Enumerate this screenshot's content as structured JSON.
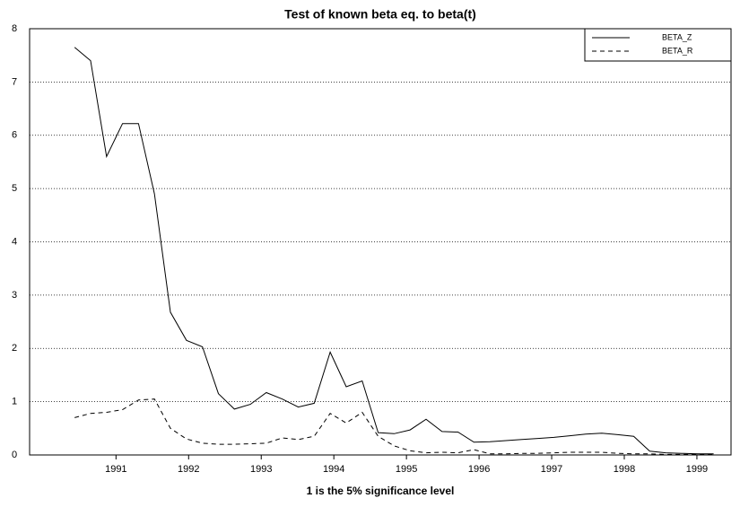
{
  "chart_data": {
    "type": "line",
    "title": "Test of known beta eq. to beta(t)",
    "x_label": "1 is the 5% significance level",
    "x": [
      1990.43,
      1990.65,
      1990.87,
      1991.09,
      1991.31,
      1991.53,
      1991.75,
      1991.97,
      1992.19,
      1992.41,
      1992.63,
      1992.85,
      1993.07,
      1993.29,
      1993.51,
      1993.73,
      1993.95,
      1994.17,
      1994.39,
      1994.61,
      1994.83,
      1995.05,
      1995.27,
      1995.49,
      1995.71,
      1995.93,
      1996.15,
      1996.37,
      1996.59,
      1996.81,
      1997.03,
      1997.25,
      1997.47,
      1997.69,
      1997.91,
      1998.13,
      1998.35,
      1998.57,
      1998.79,
      1999.01,
      1999.23
    ],
    "series": [
      {
        "name": "BETA_Z",
        "color": "#000000",
        "dash": "solid",
        "values": [
          7.65,
          7.4,
          5.6,
          6.22,
          6.22,
          4.9,
          2.68,
          2.15,
          2.03,
          1.15,
          0.86,
          0.95,
          1.17,
          1.05,
          0.9,
          0.97,
          1.93,
          1.28,
          1.39,
          0.42,
          0.4,
          0.47,
          0.67,
          0.44,
          0.43,
          0.24,
          0.25,
          0.27,
          0.29,
          0.31,
          0.33,
          0.36,
          0.39,
          0.41,
          0.38,
          0.35,
          0.07,
          0.04,
          0.03,
          0.02,
          0.02
        ]
      },
      {
        "name": "BETA_R",
        "color": "#000000",
        "dash": "dashed",
        "values": [
          0.7,
          0.78,
          0.8,
          0.85,
          1.03,
          1.05,
          0.5,
          0.3,
          0.22,
          0.2,
          0.2,
          0.21,
          0.22,
          0.32,
          0.29,
          0.35,
          0.78,
          0.6,
          0.8,
          0.35,
          0.17,
          0.08,
          0.04,
          0.05,
          0.04,
          0.1,
          0.02,
          0.02,
          0.03,
          0.03,
          0.04,
          0.05,
          0.05,
          0.05,
          0.03,
          0.02,
          0.02,
          0.01,
          0.01,
          0.01,
          0.01
        ]
      }
    ],
    "xlim": [
      1989.81,
      1999.47
    ],
    "xticks": [
      1991,
      1992,
      1993,
      1994,
      1995,
      1996,
      1997,
      1998,
      1999
    ],
    "ylim": [
      0,
      8
    ],
    "yticks": [
      0,
      1,
      2,
      3,
      4,
      5,
      6,
      7,
      8
    ],
    "grid": true,
    "legend": "top-right"
  }
}
